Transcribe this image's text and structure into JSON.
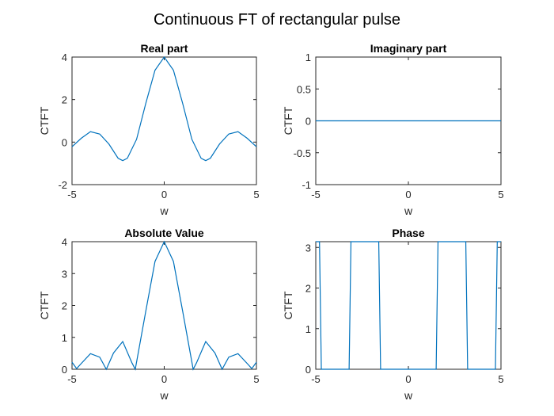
{
  "figure_title": "Continuous FT of rectangular pulse",
  "colors": {
    "line": "#0072BD",
    "axes": "#262626"
  },
  "chart_data": [
    {
      "type": "line",
      "title": "Real part",
      "xlabel": "w",
      "ylabel": "CTFT",
      "xlim": [
        -5,
        5
      ],
      "ylim": [
        -2,
        4
      ],
      "xticks": [
        "-5",
        "0",
        "5"
      ],
      "yticks": [
        "-2",
        "0",
        "2",
        "4"
      ],
      "grid": false,
      "series": [
        {
          "x": [
            -5,
            -4.5,
            -4,
            -3.5,
            -3,
            -2.5,
            -2.25,
            -2,
            -1.5,
            -1,
            -0.5,
            0,
            0.5,
            1,
            1.5,
            2,
            2.25,
            2.5,
            3,
            3.5,
            4,
            4.5,
            5
          ],
          "y": [
            -0.22,
            0.18,
            0.49,
            0.38,
            -0.09,
            -0.76,
            -0.87,
            -0.76,
            0.13,
            1.82,
            3.38,
            4.0,
            3.38,
            1.82,
            0.13,
            -0.76,
            -0.87,
            -0.76,
            -0.09,
            0.38,
            0.49,
            0.18,
            -0.22
          ]
        }
      ]
    },
    {
      "type": "line",
      "title": "Imaginary part",
      "xlabel": "w",
      "ylabel": "CTFT",
      "xlim": [
        -5,
        5
      ],
      "ylim": [
        -1,
        1
      ],
      "xticks": [
        "-5",
        "0",
        "5"
      ],
      "yticks": [
        "-1",
        "-0.5",
        "0",
        "0.5",
        "1"
      ],
      "grid": false,
      "series": [
        {
          "x": [
            -5,
            5
          ],
          "y": [
            0,
            0
          ]
        }
      ]
    },
    {
      "type": "line",
      "title": "Absolute Value",
      "xlabel": "w",
      "ylabel": "CTFT",
      "xlim": [
        -5,
        5
      ],
      "ylim": [
        0,
        4
      ],
      "xticks": [
        "-5",
        "0",
        "5"
      ],
      "yticks": [
        "0",
        "1",
        "2",
        "3",
        "4"
      ],
      "grid": false,
      "series": [
        {
          "x": [
            -5,
            -4.75,
            -4.5,
            -4,
            -3.5,
            -3.14,
            -2.75,
            -2.25,
            -1.75,
            -1.57,
            -1,
            -0.5,
            0,
            0.5,
            1,
            1.57,
            1.75,
            2.25,
            2.75,
            3.14,
            3.5,
            4,
            4.5,
            4.75,
            5
          ],
          "y": [
            0.22,
            0.02,
            0.18,
            0.49,
            0.38,
            0.0,
            0.51,
            0.87,
            0.2,
            0.0,
            1.82,
            3.38,
            4.0,
            3.38,
            1.82,
            0.0,
            0.2,
            0.87,
            0.51,
            0.0,
            0.38,
            0.49,
            0.18,
            0.02,
            0.22
          ]
        }
      ]
    },
    {
      "type": "line",
      "title": "Phase",
      "xlabel": "w",
      "ylabel": "CTFT",
      "xlim": [
        -5,
        5
      ],
      "ylim": [
        0,
        3.1416
      ],
      "xticks": [
        "-5",
        "0",
        "5"
      ],
      "yticks": [
        "0",
        "1",
        "2",
        "3"
      ],
      "grid": false,
      "series": [
        {
          "x": [
            -5,
            -4.8,
            -4.7,
            -3.2,
            -3.1,
            -1.6,
            -1.5,
            1.5,
            1.6,
            3.1,
            3.2,
            4.7,
            4.8,
            5
          ],
          "y": [
            3.1416,
            3.1416,
            0,
            0,
            3.1416,
            3.1416,
            0,
            0,
            3.1416,
            3.1416,
            0,
            0,
            3.1416,
            3.1416
          ]
        }
      ]
    }
  ]
}
